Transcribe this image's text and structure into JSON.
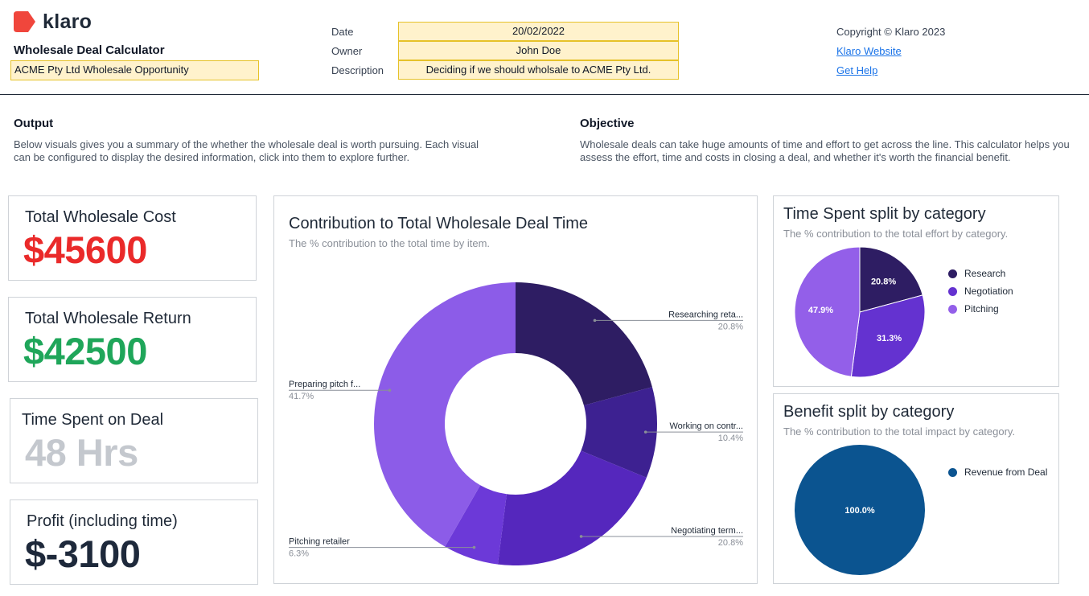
{
  "brand": {
    "name": "klaro",
    "accent": "#f0463c"
  },
  "header": {
    "app_title": "Wholesale Deal Calculator",
    "deal_name": "ACME Pty Ltd Wholesale Opportunity",
    "date_label": "Date",
    "date_value": "20/02/2022",
    "owner_label": "Owner",
    "owner_value": "John Doe",
    "description_label": "Description",
    "description_value": "Deciding if we should wholsale to ACME Pty Ltd.",
    "copyright": "Copyright © Klaro 2023",
    "website_link": "Klaro Website",
    "help_link": "Get Help"
  },
  "output": {
    "heading": "Output",
    "body": "Below visuals gives you a summary of the whether the wholesale deal is worth pursuing. Each visual can be configured to display the desired information, click into them to explore further."
  },
  "objective": {
    "heading": "Objective",
    "body": "Wholesale deals can take huge amounts of time and effort to get across the line. This calculator helps you assess the effort, time and costs in closing a deal, and whether it's worth the financial benefit."
  },
  "kpis": [
    {
      "label": "Total Wholesale Cost",
      "value": "$45600",
      "color": "#ea2a2a"
    },
    {
      "label": "Total Wholesale Return",
      "value": "$42500",
      "color": "#1fa65a"
    },
    {
      "label": "Time Spent on Deal",
      "value": "48 Hrs",
      "color": "#c4c8ce"
    },
    {
      "label": "Profit (including time)",
      "value": "$-3100",
      "color": "#1e293b"
    }
  ],
  "chart_data": [
    {
      "type": "pie",
      "variant": "donut",
      "title": "Contribution to Total Wholesale Deal Time",
      "subtitle": "The % contribution to the total time by item.",
      "categories": [
        "Researching reta...",
        "Working on contr...",
        "Negotiating term...",
        "Pitching retailer",
        "Preparing pitch f..."
      ],
      "values": [
        20.8,
        10.4,
        20.8,
        6.3,
        41.7
      ],
      "value_labels": [
        "20.8%",
        "10.4%",
        "20.8%",
        "6.3%",
        "41.7%"
      ],
      "colors": [
        "#2e1d63",
        "#3d2191",
        "#5527bd",
        "#6c39d8",
        "#8c5ce8"
      ],
      "legend": "none"
    },
    {
      "type": "pie",
      "title": "Time Spent split by category",
      "subtitle": "The % contribution to the total effort by category.",
      "categories": [
        "Research",
        "Negotiation",
        "Pitching"
      ],
      "values": [
        20.8,
        31.3,
        47.9
      ],
      "value_labels": [
        "20.8%",
        "31.3%",
        "47.9%"
      ],
      "colors": [
        "#2e1d63",
        "#6432d0",
        "#935fe9"
      ],
      "legend": "right"
    },
    {
      "type": "pie",
      "title": "Benefit split by category",
      "subtitle": "The % contribution to the total impact by category.",
      "categories": [
        "Revenue from Deal"
      ],
      "values": [
        100.0
      ],
      "value_labels": [
        "100.0%"
      ],
      "colors": [
        "#0b5490"
      ],
      "legend": "right"
    }
  ]
}
